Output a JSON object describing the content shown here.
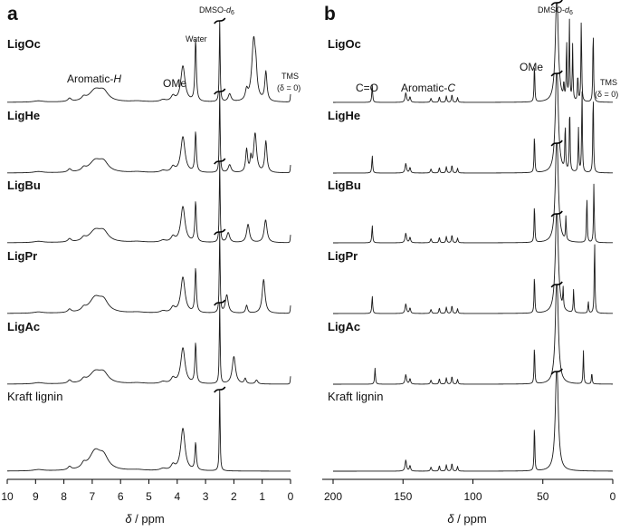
{
  "chart_data": [
    {
      "panel": "a",
      "type": "line",
      "xlabel_prefix": "δ",
      "xlabel_suffix": " / ppm",
      "xlim": [
        10,
        0
      ],
      "x_reversed": true,
      "x_ticks": [
        10,
        9,
        8,
        7,
        6,
        5,
        4,
        3,
        2,
        1,
        0
      ],
      "series_names": [
        "LigOc",
        "LigHe",
        "LigBu",
        "LigPr",
        "LigAc",
        "Kraft lignin"
      ],
      "series_name_bold": [
        true,
        true,
        true,
        true,
        true,
        false
      ],
      "annotations": {
        "aromatic": "Aromatic-",
        "aromatic_sym": "H",
        "ome": "OMe",
        "water": "Water",
        "dmso": "DMSO-",
        "dmso_sub": "6",
        "dmso_d": "d",
        "tms": "TMS",
        "tms_delta": "(δ = 0)"
      },
      "series": [
        {
          "name": "LigOc",
          "peaks": [
            [
              8.9,
              0.02,
              0.2
            ],
            [
              7.8,
              0.05,
              0.07
            ],
            [
              7.3,
              0.05,
              0.09
            ],
            [
              6.9,
              0.17,
              0.25
            ],
            [
              6.6,
              0.14,
              0.2
            ],
            [
              5.4,
              0.015,
              0.3
            ],
            [
              4.5,
              0.03,
              0.12
            ],
            [
              4.15,
              0.08,
              0.08
            ],
            [
              3.8,
              0.55,
              0.09
            ],
            [
              3.35,
              0.95,
              0.03
            ],
            [
              2.5,
              1.4,
              0.016
            ],
            [
              2.15,
              0.12,
              0.06
            ],
            [
              1.55,
              0.15,
              0.05
            ],
            [
              1.3,
              0.95,
              0.08
            ],
            [
              1.22,
              0.25,
              0.04
            ],
            [
              0.87,
              0.45,
              0.045
            ],
            [
              0.0,
              0.12,
              0.012
            ]
          ]
        },
        {
          "name": "LigHe",
          "peaks": [
            [
              8.9,
              0.02,
              0.2
            ],
            [
              7.8,
              0.05,
              0.07
            ],
            [
              7.3,
              0.05,
              0.09
            ],
            [
              6.9,
              0.17,
              0.25
            ],
            [
              6.6,
              0.14,
              0.2
            ],
            [
              5.4,
              0.015,
              0.3
            ],
            [
              4.5,
              0.03,
              0.12
            ],
            [
              4.15,
              0.08,
              0.08
            ],
            [
              3.8,
              0.55,
              0.09
            ],
            [
              3.35,
              0.62,
              0.03
            ],
            [
              2.5,
              1.4,
              0.016
            ],
            [
              2.15,
              0.12,
              0.06
            ],
            [
              1.55,
              0.35,
              0.04
            ],
            [
              1.4,
              0.2,
              0.03
            ],
            [
              1.25,
              0.6,
              0.06
            ],
            [
              0.87,
              0.48,
              0.045
            ],
            [
              0.0,
              0.12,
              0.012
            ]
          ]
        },
        {
          "name": "LigBu",
          "peaks": [
            [
              8.9,
              0.02,
              0.2
            ],
            [
              7.8,
              0.05,
              0.07
            ],
            [
              7.3,
              0.05,
              0.09
            ],
            [
              6.9,
              0.17,
              0.25
            ],
            [
              6.6,
              0.14,
              0.2
            ],
            [
              5.4,
              0.015,
              0.3
            ],
            [
              4.5,
              0.03,
              0.12
            ],
            [
              4.15,
              0.08,
              0.08
            ],
            [
              3.8,
              0.55,
              0.09
            ],
            [
              3.35,
              0.62,
              0.03
            ],
            [
              2.5,
              1.4,
              0.016
            ],
            [
              2.2,
              0.15,
              0.06
            ],
            [
              1.5,
              0.28,
              0.06
            ],
            [
              0.88,
              0.35,
              0.06
            ],
            [
              0.0,
              0.12,
              0.012
            ]
          ]
        },
        {
          "name": "LigPr",
          "peaks": [
            [
              8.9,
              0.02,
              0.2
            ],
            [
              7.8,
              0.05,
              0.07
            ],
            [
              7.3,
              0.05,
              0.09
            ],
            [
              6.9,
              0.22,
              0.25
            ],
            [
              6.6,
              0.16,
              0.2
            ],
            [
              5.4,
              0.015,
              0.3
            ],
            [
              4.5,
              0.03,
              0.12
            ],
            [
              4.15,
              0.08,
              0.08
            ],
            [
              3.8,
              0.55,
              0.09
            ],
            [
              3.35,
              0.68,
              0.03
            ],
            [
              2.5,
              1.4,
              0.016
            ],
            [
              2.25,
              0.28,
              0.06
            ],
            [
              1.55,
              0.12,
              0.04
            ],
            [
              0.95,
              0.52,
              0.06
            ],
            [
              0.0,
              0.12,
              0.012
            ]
          ]
        },
        {
          "name": "LigAc",
          "peaks": [
            [
              8.9,
              0.02,
              0.2
            ],
            [
              7.8,
              0.05,
              0.07
            ],
            [
              7.3,
              0.05,
              0.09
            ],
            [
              6.9,
              0.17,
              0.25
            ],
            [
              6.6,
              0.14,
              0.2
            ],
            [
              5.4,
              0.015,
              0.3
            ],
            [
              4.5,
              0.03,
              0.12
            ],
            [
              4.15,
              0.08,
              0.08
            ],
            [
              3.8,
              0.55,
              0.09
            ],
            [
              3.35,
              0.62,
              0.03
            ],
            [
              2.5,
              1.4,
              0.016
            ],
            [
              2.0,
              0.42,
              0.07
            ],
            [
              1.6,
              0.08,
              0.04
            ],
            [
              1.2,
              0.06,
              0.05
            ],
            [
              0.0,
              0.12,
              0.012
            ]
          ]
        },
        {
          "name": "Kraft lignin",
          "peaks": [
            [
              8.9,
              0.02,
              0.2
            ],
            [
              7.8,
              0.05,
              0.07
            ],
            [
              7.3,
              0.07,
              0.09
            ],
            [
              6.9,
              0.28,
              0.25
            ],
            [
              6.6,
              0.18,
              0.2
            ],
            [
              5.4,
              0.015,
              0.3
            ],
            [
              4.5,
              0.03,
              0.12
            ],
            [
              4.15,
              0.08,
              0.08
            ],
            [
              3.8,
              0.65,
              0.09
            ],
            [
              3.35,
              0.42,
              0.03
            ],
            [
              2.5,
              1.4,
              0.016
            ]
          ]
        }
      ]
    },
    {
      "panel": "b",
      "type": "line",
      "xlabel_prefix": "δ",
      "xlabel_suffix": " / ppm",
      "xlim": [
        200,
        0
      ],
      "x_reversed": true,
      "x_ticks": [
        200,
        150,
        100,
        50,
        0
      ],
      "series_names": [
        "LigOc",
        "LigHe",
        "LigBu",
        "LigPr",
        "LigAc",
        "Kraft lignin"
      ],
      "series_name_bold": [
        true,
        true,
        true,
        true,
        true,
        false
      ],
      "annotations": {
        "co": "C=O",
        "aromatic": "Aromatic-",
        "aromatic_sym": "C",
        "ome": "OMe",
        "dmso": "DMSO-",
        "dmso_sub": "6",
        "dmso_d": "d",
        "tms": "TMS",
        "tms_delta": "(δ = 0)"
      },
      "series": [
        {
          "name": "LigOc",
          "peaks": [
            [
              172,
              0.22,
              0.35
            ],
            [
              148,
              0.12,
              0.6
            ],
            [
              145,
              0.07,
              0.5
            ],
            [
              130,
              0.05,
              0.5
            ],
            [
              124,
              0.07,
              0.4
            ],
            [
              119,
              0.08,
              0.4
            ],
            [
              115,
              0.1,
              0.4
            ],
            [
              111,
              0.06,
              0.4
            ],
            [
              56,
              0.5,
              0.3
            ],
            [
              40,
              1.4,
              1.2
            ],
            [
              35,
              0.2,
              0.3
            ],
            [
              33,
              0.75,
              0.3
            ],
            [
              31,
              1.0,
              0.3
            ],
            [
              28.7,
              0.7,
              0.3
            ],
            [
              25,
              0.35,
              0.3
            ],
            [
              22.5,
              1.05,
              0.3
            ],
            [
              14,
              0.95,
              0.3
            ]
          ]
        },
        {
          "name": "LigHe",
          "peaks": [
            [
              172,
              0.22,
              0.35
            ],
            [
              148,
              0.12,
              0.6
            ],
            [
              145,
              0.07,
              0.5
            ],
            [
              130,
              0.05,
              0.5
            ],
            [
              124,
              0.07,
              0.4
            ],
            [
              119,
              0.08,
              0.4
            ],
            [
              115,
              0.1,
              0.4
            ],
            [
              111,
              0.06,
              0.4
            ],
            [
              56,
              0.5,
              0.3
            ],
            [
              40,
              1.4,
              1.2
            ],
            [
              34,
              0.6,
              0.3
            ],
            [
              30.8,
              0.85,
              0.3
            ],
            [
              24.5,
              0.55,
              0.3
            ],
            [
              22,
              1.05,
              0.3
            ],
            [
              14,
              1.05,
              0.3
            ]
          ]
        },
        {
          "name": "LigBu",
          "peaks": [
            [
              172,
              0.22,
              0.35
            ],
            [
              148,
              0.12,
              0.6
            ],
            [
              145,
              0.07,
              0.5
            ],
            [
              130,
              0.05,
              0.5
            ],
            [
              124,
              0.07,
              0.4
            ],
            [
              119,
              0.08,
              0.4
            ],
            [
              115,
              0.1,
              0.4
            ],
            [
              111,
              0.06,
              0.4
            ],
            [
              56,
              0.5,
              0.3
            ],
            [
              40,
              1.4,
              1.2
            ],
            [
              33.5,
              0.3,
              0.3
            ],
            [
              18.5,
              0.6,
              0.3
            ],
            [
              13.5,
              0.75,
              0.3
            ]
          ]
        },
        {
          "name": "LigPr",
          "peaks": [
            [
              172,
              0.22,
              0.35
            ],
            [
              148,
              0.12,
              0.6
            ],
            [
              145,
              0.07,
              0.5
            ],
            [
              130,
              0.05,
              0.5
            ],
            [
              124,
              0.07,
              0.4
            ],
            [
              119,
              0.08,
              0.4
            ],
            [
              115,
              0.1,
              0.4
            ],
            [
              111,
              0.06,
              0.4
            ],
            [
              56,
              0.5,
              0.3
            ],
            [
              40,
              1.4,
              1.2
            ],
            [
              35.5,
              0.25,
              0.3
            ],
            [
              28,
              0.3,
              0.3
            ],
            [
              17.5,
              0.15,
              0.3
            ],
            [
              13,
              0.95,
              0.3
            ]
          ]
        },
        {
          "name": "LigAc",
          "peaks": [
            [
              170,
              0.2,
              0.35
            ],
            [
              148,
              0.12,
              0.6
            ],
            [
              145,
              0.07,
              0.5
            ],
            [
              130,
              0.05,
              0.5
            ],
            [
              124,
              0.07,
              0.4
            ],
            [
              119,
              0.08,
              0.4
            ],
            [
              115,
              0.1,
              0.4
            ],
            [
              111,
              0.06,
              0.4
            ],
            [
              56,
              0.5,
              0.3
            ],
            [
              40,
              1.4,
              1.2
            ],
            [
              21,
              0.42,
              0.3
            ],
            [
              15,
              0.15,
              0.3
            ]
          ]
        },
        {
          "name": "Kraft lignin",
          "peaks": [
            [
              148,
              0.14,
              0.6
            ],
            [
              145,
              0.07,
              0.5
            ],
            [
              130,
              0.05,
              0.5
            ],
            [
              124,
              0.07,
              0.4
            ],
            [
              119,
              0.08,
              0.4
            ],
            [
              115,
              0.1,
              0.4
            ],
            [
              111,
              0.06,
              0.4
            ],
            [
              56,
              0.6,
              0.3
            ],
            [
              40,
              1.4,
              1.2
            ]
          ]
        }
      ]
    }
  ]
}
